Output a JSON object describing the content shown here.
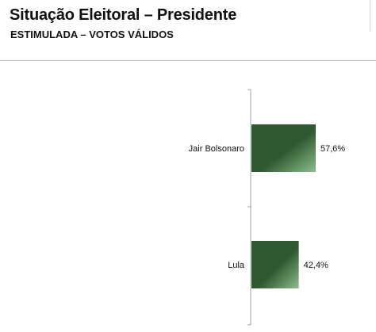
{
  "header": {
    "title": "Situação Eleitoral – Presidente",
    "subtitle": "ESTIMULADA – VOTOS VÁLIDOS"
  },
  "colors": {
    "bar_dark": "#2f5a2f",
    "bar_light": "#8cbd8c",
    "axis": "#a0a0a0",
    "divider": "#bdbdbd"
  },
  "chart_data": {
    "type": "bar",
    "orientation": "horizontal",
    "title": "Situação Eleitoral – Presidente",
    "subtitle": "ESTIMULADA – VOTOS VÁLIDOS",
    "categories": [
      "Jair Bolsonaro",
      "Lula"
    ],
    "values": [
      57.6,
      42.4
    ],
    "value_labels": [
      "57,6%",
      "42,4%"
    ],
    "unit": "%",
    "xlim": [
      0,
      100
    ],
    "grid": false,
    "legend": "none"
  }
}
